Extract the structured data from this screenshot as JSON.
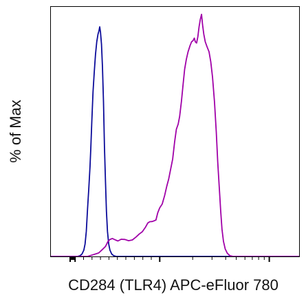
{
  "chart_data": {
    "type": "line",
    "title": "",
    "xlabel": "CD284 (TLR4) APC-eFluor 780",
    "ylabel": "% of Max",
    "x_scale": "biexponential",
    "x_ticks": [
      {
        "value": -1000,
        "label": ""
      },
      {
        "value": 0,
        "label": ""
      },
      {
        "value": 1000,
        "label": ""
      },
      {
        "value": 10000,
        "label": ""
      },
      {
        "value": 100000,
        "label": ""
      }
    ],
    "y_ticks": [],
    "ylim": [
      0,
      100
    ],
    "grid": false,
    "legend": "none",
    "series": [
      {
        "color": "#0b0b9a",
        "points": [
          [
            0.0,
            0.0
          ],
          [
            0.11,
            0.0
          ],
          [
            0.12,
            0.3
          ],
          [
            0.128,
            1.0
          ],
          [
            0.135,
            2.5
          ],
          [
            0.14,
            5.0
          ],
          [
            0.145,
            10.0
          ],
          [
            0.15,
            19.0
          ],
          [
            0.155,
            27.0
          ],
          [
            0.16,
            36.0
          ],
          [
            0.163,
            43.0
          ],
          [
            0.167,
            54.0
          ],
          [
            0.172,
            66.0
          ],
          [
            0.177,
            74.0
          ],
          [
            0.182,
            81.0
          ],
          [
            0.187,
            86.0
          ],
          [
            0.192,
            89.0
          ],
          [
            0.196,
            90.5
          ],
          [
            0.199,
            92.0
          ],
          [
            0.202,
            90.0
          ],
          [
            0.206,
            85.0
          ],
          [
            0.21,
            76.0
          ],
          [
            0.214,
            62.0
          ],
          [
            0.218,
            44.0
          ],
          [
            0.222,
            30.0
          ],
          [
            0.226,
            18.0
          ],
          [
            0.23,
            10.0
          ],
          [
            0.235,
            5.0
          ],
          [
            0.24,
            2.5
          ],
          [
            0.247,
            1.0
          ],
          [
            0.255,
            0.3
          ],
          [
            0.265,
            0.0
          ],
          [
            1.0,
            0.0
          ]
        ]
      },
      {
        "color": "#a000a8",
        "points": [
          [
            0.0,
            0.0
          ],
          [
            0.15,
            0.0
          ],
          [
            0.17,
            0.6
          ],
          [
            0.195,
            1.4
          ],
          [
            0.21,
            2.8
          ],
          [
            0.222,
            4.0
          ],
          [
            0.232,
            6.0
          ],
          [
            0.24,
            6.8
          ],
          [
            0.25,
            7.2
          ],
          [
            0.262,
            6.6
          ],
          [
            0.272,
            6.2
          ],
          [
            0.285,
            6.9
          ],
          [
            0.3,
            6.8
          ],
          [
            0.315,
            6.3
          ],
          [
            0.33,
            6.6
          ],
          [
            0.345,
            7.8
          ],
          [
            0.358,
            9.0
          ],
          [
            0.37,
            9.9
          ],
          [
            0.382,
            11.6
          ],
          [
            0.392,
            13.4
          ],
          [
            0.4,
            13.9
          ],
          [
            0.41,
            14.0
          ],
          [
            0.418,
            14.3
          ],
          [
            0.425,
            14.6
          ],
          [
            0.432,
            17.5
          ],
          [
            0.44,
            19.5
          ],
          [
            0.45,
            21.0
          ],
          [
            0.46,
            24.5
          ],
          [
            0.468,
            28.0
          ],
          [
            0.476,
            31.0
          ],
          [
            0.484,
            35.0
          ],
          [
            0.492,
            39.0
          ],
          [
            0.5,
            46.0
          ],
          [
            0.507,
            51.0
          ],
          [
            0.514,
            53.0
          ],
          [
            0.52,
            56.0
          ],
          [
            0.527,
            62.0
          ],
          [
            0.534,
            69.0
          ],
          [
            0.54,
            75.0
          ],
          [
            0.547,
            79.0
          ],
          [
            0.554,
            82.0
          ],
          [
            0.562,
            84.5
          ],
          [
            0.568,
            86.0
          ],
          [
            0.574,
            86.5
          ],
          [
            0.579,
            87.5
          ],
          [
            0.583,
            86.0
          ],
          [
            0.588,
            85.5
          ],
          [
            0.593,
            88.0
          ],
          [
            0.598,
            92.0
          ],
          [
            0.603,
            95.0
          ],
          [
            0.608,
            97.0
          ],
          [
            0.612,
            93.0
          ],
          [
            0.617,
            89.0
          ],
          [
            0.623,
            86.0
          ],
          [
            0.63,
            84.0
          ],
          [
            0.638,
            82.0
          ],
          [
            0.645,
            78.0
          ],
          [
            0.652,
            72.0
          ],
          [
            0.66,
            62.0
          ],
          [
            0.667,
            50.0
          ],
          [
            0.673,
            38.0
          ],
          [
            0.679,
            28.0
          ],
          [
            0.685,
            18.0
          ],
          [
            0.69,
            11.0
          ],
          [
            0.696,
            6.0
          ],
          [
            0.703,
            3.0
          ],
          [
            0.712,
            1.2
          ],
          [
            0.722,
            0.3
          ],
          [
            0.735,
            0.0
          ],
          [
            1.0,
            0.0
          ]
        ]
      }
    ]
  }
}
